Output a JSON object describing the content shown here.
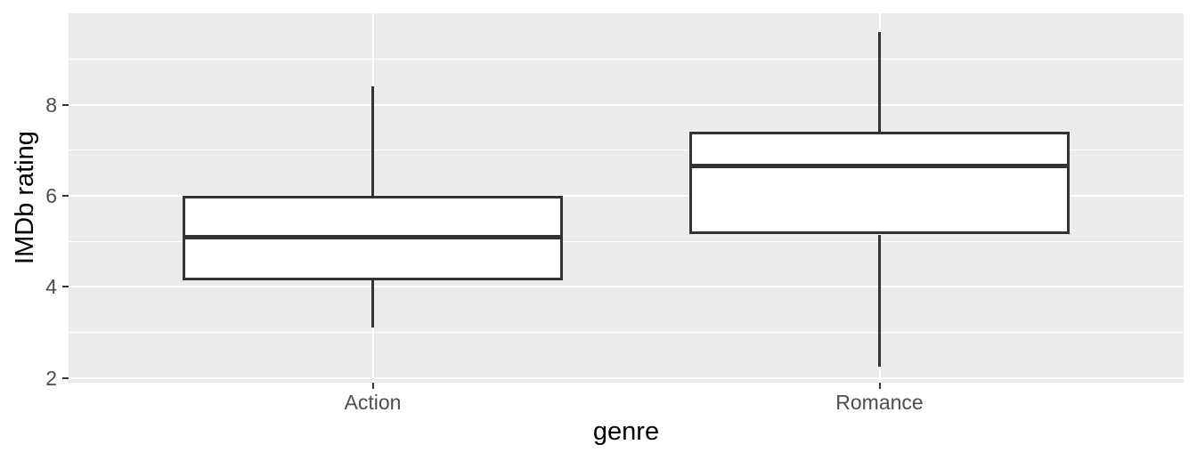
{
  "chart_data": {
    "type": "boxplot",
    "title": "",
    "xlabel": "genre",
    "ylabel": "IMDb rating",
    "categories": [
      "Action",
      "Romance"
    ],
    "series": [
      {
        "name": "Action",
        "min": 3.1,
        "q1": 4.15,
        "median": 5.1,
        "q3": 6.0,
        "max": 8.4,
        "outliers": []
      },
      {
        "name": "Romance",
        "min": 2.25,
        "q1": 5.15,
        "median": 6.65,
        "q3": 7.4,
        "max": 9.6,
        "outliers": []
      }
    ],
    "y_axis": {
      "ticks": [
        2,
        4,
        6,
        8
      ],
      "tick_labels": [
        "2",
        "4",
        "6",
        "8"
      ],
      "minor_ticks": [
        3,
        5,
        7,
        9
      ],
      "range": [
        1.9,
        10.0
      ]
    },
    "x_axis": {
      "tick_labels": [
        "Action",
        "Romance"
      ]
    },
    "legend": "none",
    "grid": "horizontal major+minor, vertical major at category centers",
    "style": {
      "panel_bg": "#EBEBEB",
      "grid_color": "#FFFFFF",
      "box_fill": "#FFFFFF",
      "line_color": "#333333",
      "tick_mark_color": "#333333",
      "tick_label_color": "#4D4D4D",
      "axis_title_color": "#000000",
      "background": "#FFFFFF"
    }
  }
}
